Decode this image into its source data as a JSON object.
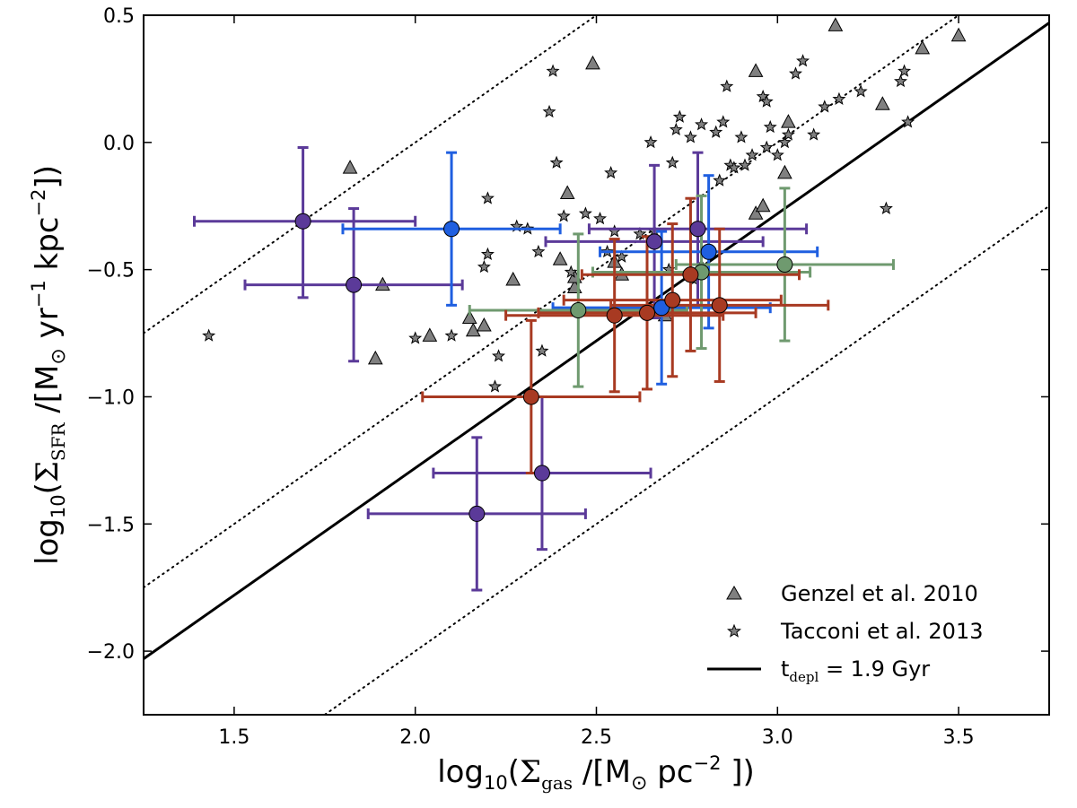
{
  "chart_data": {
    "type": "scatter",
    "xlabel": "log10(Σgas /[M⊙ pc−2 ])",
    "ylabel": "log10(ΣSFR /[M⊙ yr−1 kpc−2])",
    "xlim": [
      1.25,
      3.75
    ],
    "ylim": [
      -2.25,
      0.5
    ],
    "xticks": [
      1.5,
      2.0,
      2.5,
      3.0,
      3.5
    ],
    "yticks": [
      -2.0,
      -1.5,
      -1.0,
      -0.5,
      0.0,
      0.5
    ],
    "xtick_labels": [
      "1.5",
      "2.0",
      "2.5",
      "3.0",
      "3.5"
    ],
    "ytick_labels": [
      "−2.0",
      "−1.5",
      "−1.0",
      "−0.5",
      "0.0",
      "0.5"
    ],
    "axis_text": {
      "x_main": "log",
      "x_sub": "10",
      "x_open": "(",
      "x_sigma": "Σ",
      "x_sigma_sub": "gas",
      "x_units": " /[M",
      "x_sun": "⊙",
      "x_pc": " pc",
      "x_exp": "−2",
      "x_close": " ])",
      "y_main": "log",
      "y_sub": "10",
      "y_open": "(",
      "y_sigma": "Σ",
      "y_sigma_sub": "SFR",
      "y_units": " /[M",
      "y_sun": "⊙",
      "y_yr": " yr",
      "y_exp1": "−1",
      "y_kpc": "  kpc",
      "y_exp2": "−2",
      "y_close": "])"
    },
    "lines": [
      {
        "name": "t_depl = 1.9 Gyr",
        "slope": 1.0,
        "intercept": -3.28,
        "style": "solid"
      },
      {
        "name": "dotted-upper",
        "slope": 1.0,
        "intercept": -2.0,
        "style": "dotted"
      },
      {
        "name": "dotted-middle",
        "slope": 1.0,
        "intercept": -3.0,
        "style": "dotted"
      },
      {
        "name": "dotted-lower",
        "slope": 1.0,
        "intercept": -4.0,
        "style": "dotted"
      }
    ],
    "series": [
      {
        "name": "Genzel et al. 2010",
        "marker": "triangle",
        "color": "#808080",
        "points": [
          [
            1.82,
            -0.1
          ],
          [
            1.91,
            -0.56
          ],
          [
            1.89,
            -0.85
          ],
          [
            2.04,
            -0.76
          ],
          [
            2.15,
            -0.69
          ],
          [
            2.16,
            -0.74
          ],
          [
            2.19,
            -0.72
          ],
          [
            2.27,
            -0.54
          ],
          [
            2.4,
            -0.46
          ],
          [
            2.42,
            -0.2
          ],
          [
            2.44,
            -0.57
          ],
          [
            2.44,
            -0.53
          ],
          [
            2.49,
            0.31
          ],
          [
            2.55,
            -0.47
          ],
          [
            2.57,
            -0.52
          ],
          [
            2.69,
            -0.68
          ],
          [
            2.79,
            -0.49
          ],
          [
            2.94,
            0.28
          ],
          [
            2.94,
            -0.28
          ],
          [
            2.96,
            -0.25
          ],
          [
            3.02,
            -0.12
          ],
          [
            3.03,
            0.08
          ],
          [
            3.16,
            0.46
          ],
          [
            3.29,
            0.15
          ],
          [
            3.4,
            0.37
          ],
          [
            3.5,
            0.42
          ]
        ]
      },
      {
        "name": "Tacconi et al. 2013",
        "marker": "star",
        "color": "#808080",
        "points": [
          [
            1.43,
            -0.76
          ],
          [
            2.0,
            -0.77
          ],
          [
            2.1,
            -0.76
          ],
          [
            2.19,
            -0.49
          ],
          [
            2.2,
            -0.44
          ],
          [
            2.2,
            -0.22
          ],
          [
            2.22,
            -0.96
          ],
          [
            2.23,
            -0.84
          ],
          [
            2.28,
            -0.33
          ],
          [
            2.31,
            -0.34
          ],
          [
            2.34,
            -0.43
          ],
          [
            2.35,
            -0.82
          ],
          [
            2.37,
            0.12
          ],
          [
            2.38,
            0.28
          ],
          [
            2.39,
            -0.08
          ],
          [
            2.41,
            -0.29
          ],
          [
            2.43,
            -0.51
          ],
          [
            2.47,
            -0.28
          ],
          [
            2.51,
            -0.3
          ],
          [
            2.53,
            -0.43
          ],
          [
            2.54,
            -0.12
          ],
          [
            2.55,
            -0.35
          ],
          [
            2.57,
            -0.45
          ],
          [
            2.62,
            -0.36
          ],
          [
            2.65,
            0.0
          ],
          [
            2.66,
            -0.35
          ],
          [
            2.7,
            -0.5
          ],
          [
            2.71,
            -0.08
          ],
          [
            2.72,
            0.05
          ],
          [
            2.73,
            0.1
          ],
          [
            2.76,
            0.02
          ],
          [
            2.77,
            -0.54
          ],
          [
            2.79,
            0.07
          ],
          [
            2.83,
            0.04
          ],
          [
            2.84,
            -0.15
          ],
          [
            2.85,
            0.08
          ],
          [
            2.86,
            0.22
          ],
          [
            2.87,
            -0.09
          ],
          [
            2.88,
            -0.1
          ],
          [
            2.9,
            0.02
          ],
          [
            2.91,
            -0.09
          ],
          [
            2.93,
            -0.05
          ],
          [
            2.96,
            0.18
          ],
          [
            2.97,
            0.16
          ],
          [
            2.97,
            -0.02
          ],
          [
            2.98,
            0.06
          ],
          [
            3.0,
            -0.05
          ],
          [
            3.02,
            0.0
          ],
          [
            3.03,
            0.03
          ],
          [
            3.05,
            0.27
          ],
          [
            3.07,
            0.32
          ],
          [
            3.1,
            0.03
          ],
          [
            3.13,
            0.14
          ],
          [
            3.17,
            0.17
          ],
          [
            3.23,
            0.2
          ],
          [
            3.3,
            -0.26
          ],
          [
            3.34,
            0.24
          ],
          [
            3.35,
            0.28
          ],
          [
            3.36,
            0.08
          ]
        ]
      },
      {
        "name": "purple",
        "marker": "circle",
        "color": "#5b3a99",
        "points": [
          {
            "x": 1.69,
            "y": -0.31,
            "xerr": [
              0.3,
              0.31
            ],
            "yerr": [
              0.3,
              0.29
            ]
          },
          {
            "x": 1.83,
            "y": -0.56,
            "xerr": [
              0.3,
              0.3
            ],
            "yerr": [
              0.3,
              0.3
            ]
          },
          {
            "x": 2.17,
            "y": -1.46,
            "xerr": [
              0.3,
              0.3
            ],
            "yerr": [
              0.3,
              0.3
            ]
          },
          {
            "x": 2.35,
            "y": -1.3,
            "xerr": [
              0.3,
              0.3
            ],
            "yerr": [
              0.3,
              0.3
            ]
          },
          {
            "x": 2.66,
            "y": -0.39,
            "xerr": [
              0.3,
              0.3
            ],
            "yerr": [
              0.3,
              0.3
            ]
          },
          {
            "x": 2.78,
            "y": -0.34,
            "xerr": [
              0.3,
              0.3
            ],
            "yerr": [
              0.3,
              0.3
            ]
          }
        ]
      },
      {
        "name": "blue",
        "marker": "circle",
        "color": "#1f5fe0",
        "points": [
          {
            "x": 2.1,
            "y": -0.34,
            "xerr": [
              0.3,
              0.3
            ],
            "yerr": [
              0.3,
              0.3
            ]
          },
          {
            "x": 2.68,
            "y": -0.65,
            "xerr": [
              0.3,
              0.3
            ],
            "yerr": [
              0.3,
              0.3
            ]
          },
          {
            "x": 2.81,
            "y": -0.43,
            "xerr": [
              0.3,
              0.3
            ],
            "yerr": [
              0.3,
              0.3
            ]
          }
        ]
      },
      {
        "name": "green",
        "marker": "circle",
        "color": "#6f9a6f",
        "points": [
          {
            "x": 2.45,
            "y": -0.66,
            "xerr": [
              0.3,
              0.3
            ],
            "yerr": [
              0.3,
              0.3
            ]
          },
          {
            "x": 2.79,
            "y": -0.51,
            "xerr": [
              0.3,
              0.3
            ],
            "yerr": [
              0.3,
              0.3
            ]
          },
          {
            "x": 3.02,
            "y": -0.48,
            "xerr": [
              0.3,
              0.3
            ],
            "yerr": [
              0.3,
              0.3
            ]
          }
        ]
      },
      {
        "name": "red",
        "marker": "circle",
        "color": "#a83a22",
        "points": [
          {
            "x": 2.32,
            "y": -1.0,
            "xerr": [
              0.3,
              0.3
            ],
            "yerr": [
              0.3,
              0.3
            ]
          },
          {
            "x": 2.55,
            "y": -0.68,
            "xerr": [
              0.3,
              0.3
            ],
            "yerr": [
              0.3,
              0.3
            ]
          },
          {
            "x": 2.64,
            "y": -0.67,
            "xerr": [
              0.3,
              0.3
            ],
            "yerr": [
              0.3,
              0.3
            ]
          },
          {
            "x": 2.71,
            "y": -0.62,
            "xerr": [
              0.3,
              0.3
            ],
            "yerr": [
              0.3,
              0.3
            ]
          },
          {
            "x": 2.76,
            "y": -0.52,
            "xerr": [
              0.3,
              0.3
            ],
            "yerr": [
              0.3,
              0.3
            ]
          },
          {
            "x": 2.84,
            "y": -0.64,
            "xerr": [
              0.3,
              0.3
            ],
            "yerr": [
              0.3,
              0.3
            ]
          }
        ]
      }
    ],
    "legend": {
      "position": "lower-right",
      "entries": [
        {
          "label": "Genzel et al. 2010",
          "marker": "triangle"
        },
        {
          "label": "Tacconi et al. 2013",
          "marker": "star"
        },
        {
          "label_main": "t",
          "label_sub": "depl",
          "label_rest": " = 1.9 Gyr",
          "marker": "line"
        }
      ]
    }
  }
}
